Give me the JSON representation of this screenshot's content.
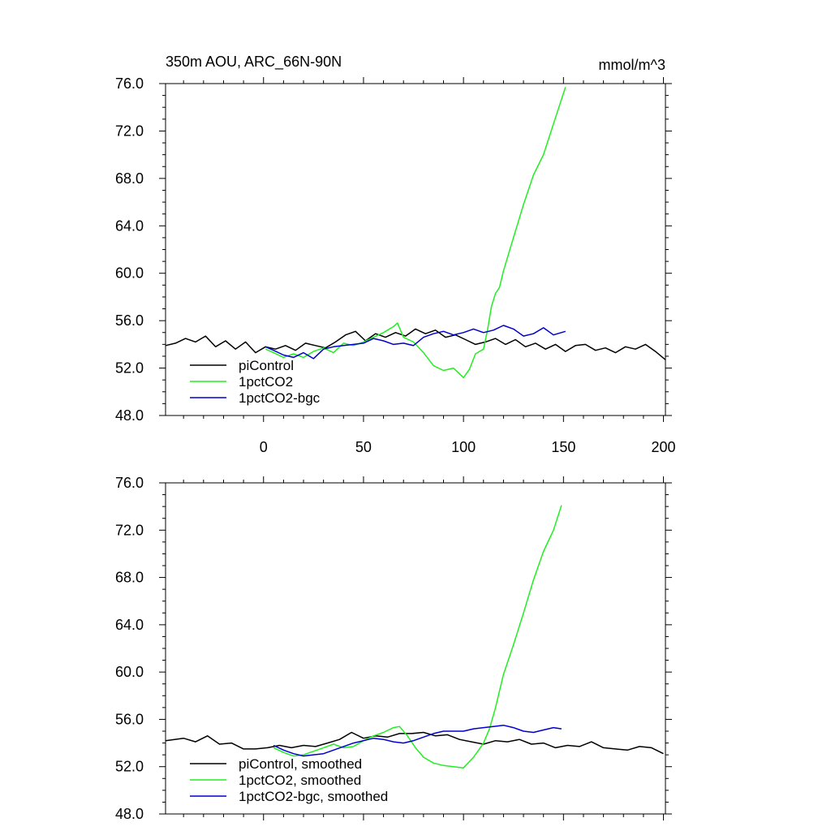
{
  "colors": {
    "piControl": "#000000",
    "1pctCO2": "#22ee22",
    "1pctCO2-bgc": "#0000cc"
  },
  "chart_data": [
    {
      "type": "line",
      "title": "350m AOU, ARC_66N-90N",
      "units": "mmol/m^3",
      "xlim": [
        -49,
        201
      ],
      "ylim": [
        48,
        76
      ],
      "yticks": [
        "48.0",
        "52.0",
        "56.0",
        "60.0",
        "64.0",
        "68.0",
        "72.0",
        "76.0"
      ],
      "xticks": [
        "0",
        "50",
        "100",
        "150",
        "200"
      ],
      "show_xtick_labels": true,
      "series": [
        {
          "name": "piControl",
          "color": "#000000",
          "x": [
            -49,
            -44,
            -39,
            -34,
            -29,
            -24,
            -19,
            -14,
            -9,
            -4,
            1,
            6,
            11,
            16,
            21,
            26,
            31,
            36,
            41,
            46,
            51,
            56,
            61,
            66,
            71,
            76,
            81,
            86,
            91,
            96,
            101,
            106,
            111,
            116,
            121,
            126,
            131,
            136,
            141,
            146,
            151,
            156,
            161,
            166,
            171,
            176,
            181,
            186,
            191,
            196,
            201
          ],
          "y": [
            53.9,
            54.1,
            54.5,
            54.2,
            54.7,
            53.8,
            54.3,
            53.6,
            54.2,
            53.3,
            53.8,
            53.6,
            53.9,
            53.5,
            54.1,
            53.9,
            53.7,
            54.2,
            54.8,
            55.1,
            54.3,
            54.9,
            54.6,
            55.0,
            54.7,
            55.3,
            54.9,
            55.2,
            54.6,
            54.8,
            54.4,
            54.0,
            54.2,
            54.5,
            54.0,
            54.4,
            53.8,
            54.1,
            53.6,
            54.0,
            53.4,
            53.9,
            54.0,
            53.5,
            53.7,
            53.3,
            53.8,
            53.6,
            54.0,
            53.4,
            52.7
          ]
        },
        {
          "name": "1pctCO2",
          "color": "#22ee22",
          "x": [
            1,
            5,
            10,
            15,
            20,
            25,
            30,
            35,
            40,
            45,
            50,
            55,
            60,
            65,
            67,
            70,
            75,
            80,
            85,
            90,
            95,
            100,
            103,
            106,
            110,
            112,
            114,
            116,
            118,
            120,
            125,
            130,
            135,
            140,
            145,
            151
          ],
          "y": [
            53.6,
            53.3,
            52.9,
            53.2,
            52.9,
            53.4,
            53.7,
            53.3,
            54.1,
            53.9,
            54.2,
            54.6,
            55.0,
            55.5,
            55.8,
            54.6,
            54.2,
            53.3,
            52.2,
            51.8,
            52.0,
            51.2,
            51.9,
            53.2,
            53.6,
            55.2,
            57.2,
            58.3,
            58.8,
            60.2,
            63.0,
            65.8,
            68.3,
            70.0,
            72.6,
            75.7
          ]
        },
        {
          "name": "1pctCO2-bgc",
          "color": "#0000cc",
          "x": [
            1,
            5,
            10,
            15,
            20,
            25,
            30,
            35,
            40,
            45,
            50,
            55,
            60,
            65,
            70,
            75,
            80,
            85,
            90,
            95,
            100,
            105,
            110,
            115,
            120,
            125,
            130,
            135,
            140,
            145,
            151
          ],
          "y": [
            53.8,
            53.5,
            53.1,
            52.9,
            53.3,
            52.8,
            53.6,
            53.8,
            53.9,
            54.0,
            54.1,
            54.5,
            54.3,
            54.0,
            54.1,
            53.9,
            54.6,
            54.9,
            55.1,
            54.8,
            55.0,
            55.3,
            55.0,
            55.2,
            55.6,
            55.3,
            54.7,
            54.9,
            55.4,
            54.8,
            55.1
          ]
        }
      ],
      "legend": {
        "position": "bottom-left",
        "labels": [
          "piControl",
          "1pctCO2",
          "1pctCO2-bgc"
        ]
      }
    },
    {
      "type": "line",
      "title": "",
      "units": "",
      "xlim": [
        -49,
        201
      ],
      "ylim": [
        48,
        76
      ],
      "yticks": [
        "48.0",
        "52.0",
        "56.0",
        "60.0",
        "64.0",
        "68.0",
        "72.0",
        "76.0"
      ],
      "xticks": [
        "0",
        "50",
        "100",
        "150",
        "200"
      ],
      "show_xtick_labels": false,
      "series": [
        {
          "name": "piControl, smoothed",
          "color": "#000000",
          "x": [
            -49,
            -40,
            -34,
            -28,
            -22,
            -16,
            -10,
            -4,
            2,
            8,
            14,
            20,
            26,
            32,
            38,
            44,
            50,
            56,
            62,
            68,
            74,
            80,
            86,
            92,
            98,
            104,
            110,
            116,
            122,
            128,
            134,
            140,
            146,
            152,
            158,
            164,
            170,
            176,
            182,
            188,
            194,
            200
          ],
          "y": [
            54.2,
            54.4,
            54.1,
            54.6,
            53.9,
            54.0,
            53.5,
            53.5,
            53.6,
            53.8,
            53.6,
            53.8,
            53.7,
            54.0,
            54.3,
            54.9,
            54.4,
            54.6,
            54.5,
            54.8,
            54.8,
            54.9,
            54.6,
            54.7,
            54.3,
            54.1,
            53.9,
            54.2,
            54.1,
            54.3,
            53.9,
            54.0,
            53.6,
            53.8,
            53.7,
            54.1,
            53.6,
            53.5,
            53.4,
            53.7,
            53.6,
            53.1
          ]
        },
        {
          "name": "1pctCO2, smoothed",
          "color": "#22ee22",
          "x": [
            5,
            10,
            15,
            20,
            25,
            30,
            35,
            40,
            45,
            50,
            55,
            60,
            65,
            68,
            72,
            76,
            80,
            85,
            90,
            95,
            100,
            105,
            108,
            110,
            113,
            116,
            120,
            125,
            130,
            135,
            140,
            145,
            149
          ],
          "y": [
            53.6,
            53.2,
            52.9,
            53.0,
            53.3,
            53.6,
            53.9,
            53.6,
            53.7,
            54.2,
            54.6,
            54.9,
            55.3,
            55.4,
            54.6,
            53.6,
            52.8,
            52.3,
            52.1,
            52.0,
            51.9,
            52.8,
            53.5,
            54.0,
            55.2,
            57.0,
            59.8,
            62.3,
            65.0,
            67.8,
            70.2,
            72.0,
            74.1
          ]
        },
        {
          "name": "1pctCO2-bgc, smoothed",
          "color": "#0000cc",
          "x": [
            5,
            10,
            15,
            20,
            25,
            30,
            35,
            40,
            45,
            50,
            55,
            60,
            65,
            70,
            75,
            80,
            85,
            90,
            95,
            100,
            105,
            110,
            115,
            120,
            125,
            130,
            135,
            140,
            145,
            149
          ],
          "y": [
            53.8,
            53.4,
            53.1,
            52.9,
            53.0,
            53.1,
            53.4,
            53.7,
            54.0,
            54.2,
            54.4,
            54.3,
            54.1,
            54.0,
            54.2,
            54.5,
            54.8,
            55.0,
            55.0,
            55.0,
            55.2,
            55.3,
            55.4,
            55.5,
            55.3,
            55.0,
            54.9,
            55.1,
            55.3,
            55.2
          ]
        }
      ],
      "legend": {
        "position": "bottom-left",
        "labels": [
          "piControl, smoothed",
          "1pctCO2, smoothed",
          "1pctCO2-bgc, smoothed"
        ]
      }
    }
  ]
}
